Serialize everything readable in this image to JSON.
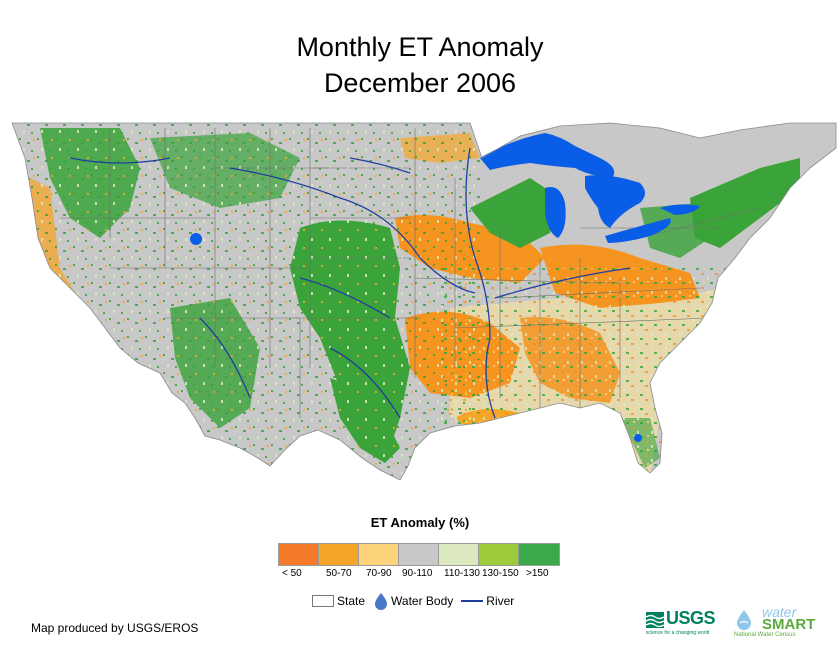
{
  "title_line1": "Monthly ET Anomaly",
  "title_line2": "December 2006",
  "legend": {
    "title": "ET Anomaly (%)",
    "classes": [
      {
        "label": "< 50",
        "color": "#f47a2a"
      },
      {
        "label": "50-70",
        "color": "#f5a628"
      },
      {
        "label": "70-90",
        "color": "#fdd47c"
      },
      {
        "label": "90-110",
        "color": "#c8c8c8"
      },
      {
        "label": "110-130",
        "color": "#dce9be"
      },
      {
        "label": "130-150",
        "color": "#9ccc3c"
      },
      {
        "label": ">150",
        "color": "#3aa94a"
      }
    ],
    "keys": {
      "state": "State",
      "water_body": "Water Body",
      "river": "River"
    }
  },
  "colors": {
    "background_land": "#c8c8c8",
    "water": "#0a5de6",
    "river": "#1f3f9e",
    "state_border": "#6e6e6e",
    "wet_green": "#3aa33a",
    "dry_orange": "#f5941f"
  },
  "credit": "Map produced by USGS/EROS",
  "logos": {
    "usgs": "USGS",
    "usgs_tagline": "science for a changing world",
    "watersmart_water": "water",
    "watersmart_smart": "SMART",
    "watersmart_tagline": "National Water Census"
  }
}
